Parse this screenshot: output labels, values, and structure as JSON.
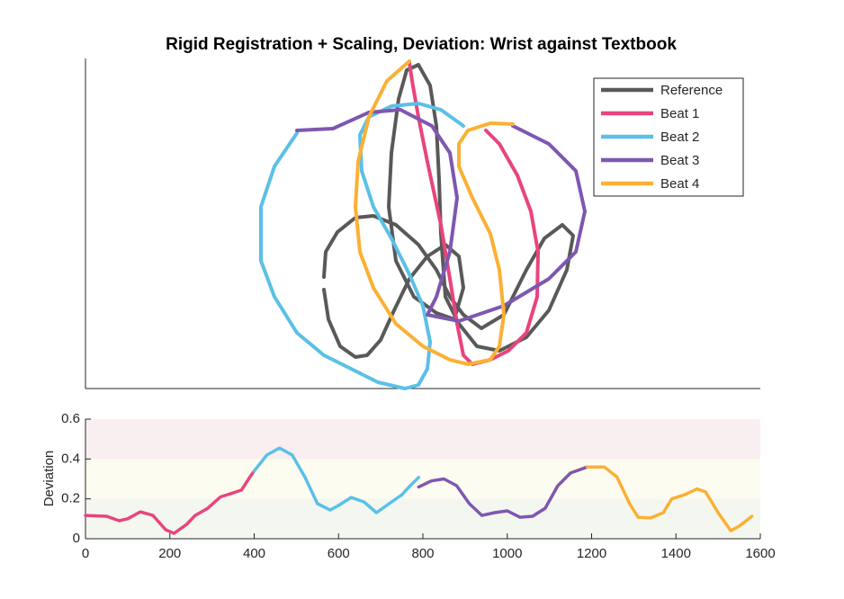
{
  "chart_data": [
    {
      "type": "line",
      "title": "Rigid Registration + Scaling, Deviation: Wrist against Textbook",
      "xlim": [
        0,
        750
      ],
      "ylim": [
        0,
        367
      ],
      "legend": "upper right",
      "series": [
        {
          "name": "Reference",
          "color": "#595959",
          "x": [
            265,
            267,
            280,
            300,
            320,
            345,
            370,
            390,
            405,
            420,
            440,
            465,
            490,
            510,
            530,
            542,
            535,
            515,
            490,
            460,
            435,
            415,
            400,
            395,
            393,
            390,
            383,
            370,
            357,
            348,
            340,
            337,
            345,
            365,
            390,
            410,
            420,
            415,
            400,
            380,
            360,
            343,
            328,
            313,
            300,
            283,
            270,
            265
          ],
          "values": [
            124,
            152,
            174,
            190,
            192,
            182,
            160,
            132,
            102,
            82,
            67,
            82,
            132,
            167,
            182,
            170,
            132,
            87,
            57,
            42,
            47,
            72,
            102,
            172,
            232,
            292,
            337,
            360,
            354,
            322,
            262,
            202,
            142,
            102,
            84,
            77,
            112,
            147,
            160,
            147,
            122,
            87,
            54,
            37,
            35,
            47,
            77,
            110
          ]
        },
        {
          "name": "Beat 1",
          "color": "#e8447f",
          "x": [
            360,
            363,
            370,
            380,
            395,
            405,
            413,
            420,
            430,
            450,
            470,
            490,
            502,
            503,
            495,
            480,
            460,
            445
          ],
          "values": [
            362,
            342,
            302,
            252,
            182,
            122,
            72,
            37,
            27,
            32,
            42,
            62,
            102,
            152,
            197,
            237,
            272,
            287
          ]
        },
        {
          "name": "Beat 2",
          "color": "#5bc0e6",
          "x": [
            235,
            210,
            195,
            195,
            210,
            235,
            265,
            295,
            325,
            355,
            370,
            380,
            383,
            375,
            360,
            340,
            320,
            307,
            305,
            315,
            340,
            370,
            395,
            420
          ],
          "values": [
            284,
            247,
            202,
            142,
            102,
            62,
            37,
            22,
            7,
            0,
            4,
            22,
            52,
            92,
            127,
            167,
            202,
            242,
            282,
            302,
            314,
            317,
            310,
            292
          ]
        },
        {
          "name": "Beat 3",
          "color": "#7e57b0",
          "x": [
            235,
            275,
            315,
            350,
            385,
            405,
            413,
            405,
            390,
            380,
            415,
            465,
            515,
            545,
            555,
            545,
            515,
            475
          ],
          "values": [
            287,
            289,
            307,
            310,
            292,
            262,
            212,
            152,
            102,
            82,
            75,
            92,
            122,
            152,
            197,
            242,
            272,
            292
          ]
        },
        {
          "name": "Beat 4",
          "color": "#fbb034",
          "x": [
            360,
            335,
            315,
            303,
            300,
            305,
            320,
            345,
            375,
            405,
            425,
            450,
            460,
            465,
            460,
            450,
            430,
            415,
            415,
            425,
            450,
            475
          ],
          "values": [
            364,
            342,
            302,
            252,
            202,
            152,
            112,
            72,
            47,
            32,
            27,
            32,
            47,
            82,
            132,
            172,
            212,
            247,
            272,
            287,
            295,
            294
          ]
        }
      ]
    },
    {
      "type": "line",
      "ylabel": "Deviation",
      "xlim": [
        0,
        1600
      ],
      "ylim": [
        0,
        0.6
      ],
      "xticks": [
        0,
        200,
        400,
        600,
        800,
        1000,
        1200,
        1400,
        1600
      ],
      "yticks": [
        0,
        0.2,
        0.4,
        0.6
      ],
      "bands": [
        {
          "from": 0,
          "to": 0.2,
          "color": "#f3f7ef"
        },
        {
          "from": 0.2,
          "to": 0.4,
          "color": "#fdfcf0"
        },
        {
          "from": 0.4,
          "to": 0.6,
          "color": "#f9eef0"
        }
      ],
      "series": [
        {
          "color": "#e8447f",
          "x": [
            0,
            50,
            80,
            100,
            130,
            160,
            190,
            210,
            240,
            260,
            290,
            320,
            350,
            370,
            390,
            400
          ],
          "values": [
            0.117,
            0.113,
            0.09,
            0.1,
            0.135,
            0.117,
            0.045,
            0.027,
            0.072,
            0.117,
            0.153,
            0.21,
            0.23,
            0.244,
            0.31,
            0.34
          ]
        },
        {
          "color": "#5bc0e6",
          "x": [
            400,
            430,
            460,
            490,
            520,
            550,
            580,
            600,
            630,
            660,
            690,
            720,
            750,
            770,
            790
          ],
          "values": [
            0.34,
            0.42,
            0.455,
            0.42,
            0.31,
            0.176,
            0.144,
            0.167,
            0.207,
            0.185,
            0.131,
            0.176,
            0.22,
            0.266,
            0.307
          ]
        },
        {
          "color": "#7e57b0",
          "x": [
            790,
            820,
            850,
            880,
            910,
            940,
            970,
            1000,
            1030,
            1060,
            1090,
            1120,
            1150,
            1190
          ],
          "values": [
            0.26,
            0.29,
            0.3,
            0.266,
            0.176,
            0.117,
            0.131,
            0.14,
            0.108,
            0.113,
            0.153,
            0.266,
            0.33,
            0.36
          ]
        },
        {
          "color": "#fbb034",
          "x": [
            1190,
            1230,
            1260,
            1290,
            1310,
            1340,
            1370,
            1390,
            1420,
            1450,
            1470,
            1500,
            1530,
            1550,
            1580
          ],
          "values": [
            0.36,
            0.36,
            0.31,
            0.176,
            0.108,
            0.104,
            0.131,
            0.2,
            0.22,
            0.25,
            0.235,
            0.131,
            0.04,
            0.063,
            0.113
          ]
        }
      ]
    }
  ]
}
